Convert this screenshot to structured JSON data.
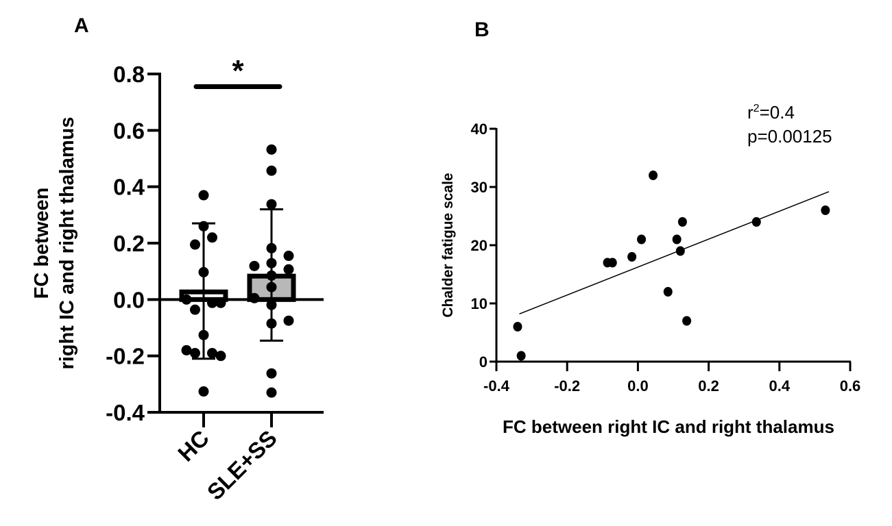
{
  "chart_data": [
    {
      "panel": "A",
      "type": "bar",
      "title": "",
      "xlabel": "",
      "ylabel_lines": [
        "FC between",
        "right IC and right thalamus"
      ],
      "ylim": [
        -0.4,
        0.8
      ],
      "yticks": [
        "0.8",
        "0.6",
        "0.4",
        "0.2",
        "0.0",
        "-0.2",
        "-0.4"
      ],
      "ytick_values": [
        0.8,
        0.6,
        0.4,
        0.2,
        0.0,
        -0.2,
        -0.4
      ],
      "categories": [
        "HC",
        "SLE+SS"
      ],
      "bar_colors": [
        "#ffffff",
        "#b8b8b8"
      ],
      "series": [
        {
          "name": "HC",
          "mean": 0.027,
          "error_upper": 0.27,
          "error_lower": -0.21,
          "points": [
            {
              "jitter": 0,
              "y": 0.37
            },
            {
              "jitter": 0,
              "y": 0.26
            },
            {
              "jitter": 1,
              "y": 0.22
            },
            {
              "jitter": -1,
              "y": 0.195
            },
            {
              "jitter": 0,
              "y": 0.097
            },
            {
              "jitter": -2,
              "y": 0.0
            },
            {
              "jitter": 1,
              "y": -0.012
            },
            {
              "jitter": 2,
              "y": -0.012
            },
            {
              "jitter": -1,
              "y": -0.036
            },
            {
              "jitter": 0,
              "y": -0.126
            },
            {
              "jitter": -2,
              "y": -0.18
            },
            {
              "jitter": -1,
              "y": -0.19
            },
            {
              "jitter": 1,
              "y": -0.19
            },
            {
              "jitter": 2,
              "y": -0.2
            },
            {
              "jitter": 0,
              "y": -0.326
            }
          ]
        },
        {
          "name": "SLE+SS",
          "mean": 0.083,
          "error_upper": 0.32,
          "error_lower": -0.146,
          "points": [
            {
              "jitter": 0,
              "y": 0.532
            },
            {
              "jitter": 0,
              "y": 0.457
            },
            {
              "jitter": 0,
              "y": 0.338
            },
            {
              "jitter": 0,
              "y": 0.182
            },
            {
              "jitter": 2,
              "y": 0.155
            },
            {
              "jitter": -2,
              "y": 0.119
            },
            {
              "jitter": 0,
              "y": 0.129
            },
            {
              "jitter": 2,
              "y": 0.107
            },
            {
              "jitter": 0,
              "y": 0.085
            },
            {
              "jitter": 0,
              "y": 0.044
            },
            {
              "jitter": -2,
              "y": 0.005
            },
            {
              "jitter": 0,
              "y": -0.019
            },
            {
              "jitter": 0,
              "y": -0.085
            },
            {
              "jitter": 2,
              "y": -0.075
            },
            {
              "jitter": 0,
              "y": -0.262
            },
            {
              "jitter": 0,
              "y": -0.33
            }
          ]
        }
      ],
      "annotation": {
        "text": "*",
        "between": [
          "HC",
          "SLE+SS"
        ],
        "y": 0.755
      }
    },
    {
      "panel": "B",
      "type": "scatter",
      "title": "",
      "xlabel": "FC between right IC and right thalamus",
      "ylabel": "Chalder fatigue scale",
      "xlim": [
        -0.4,
        0.6
      ],
      "ylim": [
        0,
        40
      ],
      "xticks": [
        "-0.4",
        "-0.2",
        "0.0",
        "0.2",
        "0.4",
        "0.6"
      ],
      "xtick_values": [
        -0.4,
        -0.2,
        0.0,
        0.2,
        0.4,
        0.6
      ],
      "yticks": [
        "40",
        "30",
        "20",
        "10",
        "0"
      ],
      "ytick_values": [
        40,
        30,
        20,
        10,
        0
      ],
      "points": [
        {
          "x": -0.34,
          "y": 6
        },
        {
          "x": -0.33,
          "y": 1
        },
        {
          "x": -0.086,
          "y": 17
        },
        {
          "x": -0.072,
          "y": 17
        },
        {
          "x": -0.017,
          "y": 18
        },
        {
          "x": 0.01,
          "y": 21
        },
        {
          "x": 0.043,
          "y": 32
        },
        {
          "x": 0.085,
          "y": 12
        },
        {
          "x": 0.11,
          "y": 21
        },
        {
          "x": 0.12,
          "y": 19
        },
        {
          "x": 0.126,
          "y": 24
        },
        {
          "x": 0.138,
          "y": 7
        },
        {
          "x": 0.335,
          "y": 24
        },
        {
          "x": 0.53,
          "y": 26
        }
      ],
      "regression_line": {
        "x": [
          -0.335,
          0.54
        ],
        "y": [
          8.2,
          29.2
        ]
      },
      "stats": {
        "r2_prefix": "r",
        "r2_sup": "2",
        "r2_value": "=0.4",
        "p_text": "p=0.00125"
      }
    }
  ],
  "panel_labels": {
    "a": "A",
    "b": "B"
  },
  "colors": {
    "ink": "#000000",
    "bar_fill_slss": "#b8b8b8",
    "background": "#ffffff"
  }
}
